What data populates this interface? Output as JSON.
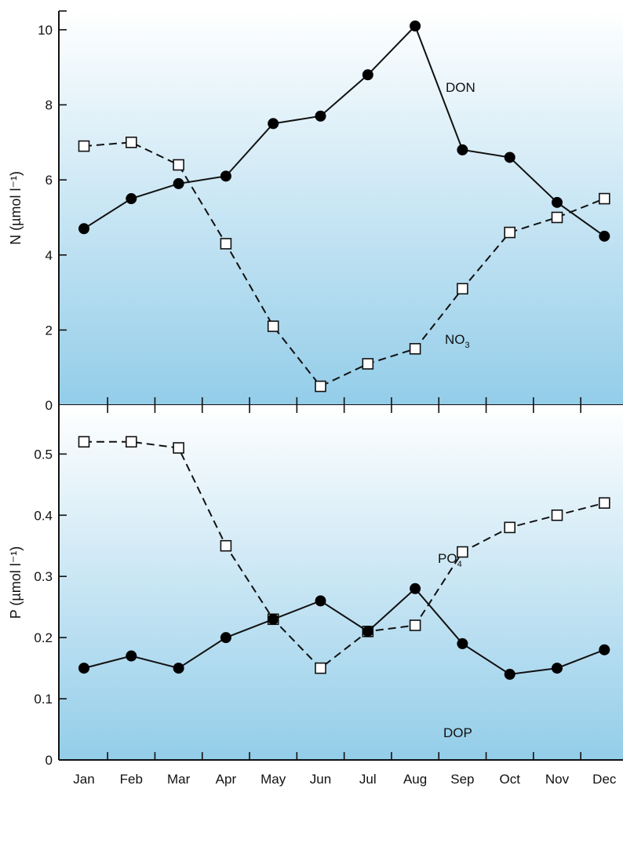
{
  "chart_data": [
    {
      "type": "line",
      "ylabel": "N (µmol l⁻¹)",
      "ylim": [
        0,
        10.5
      ],
      "yticks": [
        0,
        2,
        4,
        6,
        8,
        10
      ],
      "x": [
        "Jan",
        "Feb",
        "Mar",
        "Apr",
        "May",
        "Jun",
        "Jul",
        "Aug",
        "Sep",
        "Oct",
        "Nov",
        "Dec"
      ],
      "series": [
        {
          "name": "DON",
          "marker": "filled-circle",
          "line": "solid",
          "values": [
            4.7,
            5.5,
            5.9,
            6.1,
            7.5,
            7.7,
            8.8,
            10.1,
            6.8,
            6.6,
            5.4,
            4.5
          ]
        },
        {
          "name": "NO3",
          "marker": "open-square",
          "line": "dashed",
          "values": [
            6.9,
            7.0,
            6.4,
            4.3,
            2.1,
            0.5,
            1.1,
            1.5,
            3.1,
            4.6,
            5.0,
            5.5
          ]
        }
      ],
      "grid": false
    },
    {
      "type": "line",
      "ylabel": "P (µmol l⁻¹)",
      "ylim": [
        0,
        0.58
      ],
      "yticks": [
        0,
        0.1,
        0.2,
        0.3,
        0.4,
        0.5
      ],
      "ytick_labels": [
        "0",
        "0.1",
        "0.2",
        "0.3",
        "0.4",
        "0.5"
      ],
      "x": [
        "Jan",
        "Feb",
        "Mar",
        "Apr",
        "May",
        "Jun",
        "Jul",
        "Aug",
        "Sep",
        "Oct",
        "Nov",
        "Dec"
      ],
      "series": [
        {
          "name": "PO4",
          "marker": "open-square",
          "line": "dashed",
          "values": [
            0.52,
            0.52,
            0.51,
            0.35,
            0.23,
            0.15,
            0.21,
            0.22,
            0.34,
            0.38,
            0.4,
            0.42
          ]
        },
        {
          "name": "DOP",
          "marker": "filled-circle",
          "line": "solid",
          "values": [
            0.15,
            0.17,
            0.15,
            0.2,
            0.23,
            0.26,
            0.21,
            0.28,
            0.19,
            0.14,
            0.15,
            0.18
          ]
        }
      ],
      "grid": false
    }
  ],
  "colors": {
    "background_top": "#ffffff",
    "background_bottom": "#93cde9",
    "axis": "#111111",
    "series": "#111111",
    "marker_open_fill": "#ffffff"
  }
}
